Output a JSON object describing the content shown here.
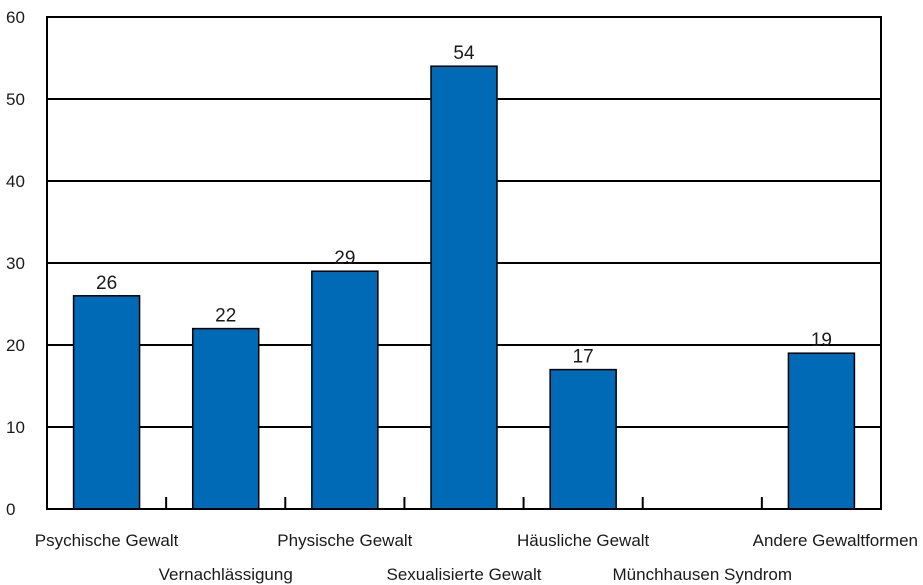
{
  "chart_data": {
    "type": "bar",
    "title": "",
    "xlabel": "",
    "ylabel": "",
    "categories": [
      "Psychische Gewalt",
      "Vernachlässigung",
      "Physische Gewalt",
      "Sexualisierte Gewalt",
      "Häusliche Gewalt",
      "Münchhausen Syndrom",
      "Andere Gewaltformen"
    ],
    "values": [
      26,
      22,
      29,
      54,
      17,
      null,
      19
    ],
    "value_labels": [
      "26",
      "22",
      "29",
      "54",
      "17",
      "",
      "19"
    ],
    "ylim": [
      0,
      60
    ],
    "yticks": [
      "0",
      "10",
      "20",
      "30",
      "40",
      "50",
      "60"
    ],
    "grid": "horizontal",
    "legend": "none",
    "bar_color": "#006ab6",
    "grid_color": "#000000"
  }
}
